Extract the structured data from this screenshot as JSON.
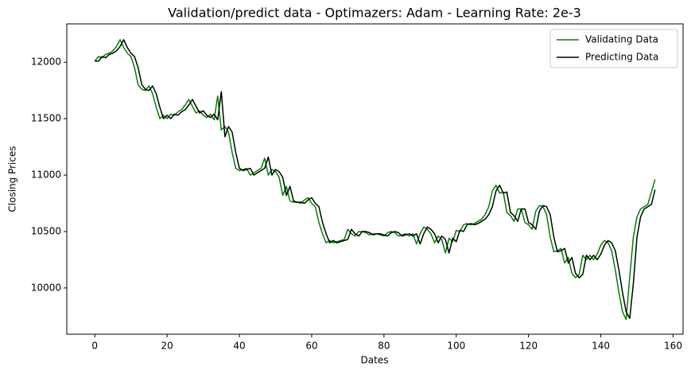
{
  "chart_data": {
    "type": "line",
    "title": "Validation/predict data - Optimazers: Adam - Learning Rate: 2e-3",
    "x_label": "Dates",
    "y_label": "Closing Prices",
    "xlim": [
      -7.75,
      162.75
    ],
    "xticks": [
      0,
      20,
      40,
      60,
      80,
      100,
      120,
      140,
      160
    ],
    "ylim": [
      9590,
      12340
    ],
    "yticks": [
      10000,
      10500,
      11000,
      11500,
      12000
    ],
    "grid": false,
    "legend": "upper right",
    "series": [
      {
        "name": "Validating Data",
        "color": "#008000",
        "values": [
          12010,
          12050,
          12040,
          12070,
          12080,
          12100,
          12140,
          12200,
          12130,
          12080,
          12050,
          11950,
          11800,
          11760,
          11750,
          11790,
          11720,
          11600,
          11500,
          11530,
          11500,
          11540,
          11530,
          11560,
          11580,
          11620,
          11670,
          11610,
          11550,
          11570,
          11530,
          11510,
          11540,
          11490,
          11700,
          11400,
          11430,
          11380,
          11200,
          11060,
          11040,
          11050,
          11060,
          11000,
          11020,
          11040,
          11060,
          11150,
          11000,
          11050,
          11030,
          10980,
          10820,
          10900,
          10770,
          10760,
          10760,
          10750,
          10780,
          10800,
          10750,
          10720,
          10580,
          10480,
          10400,
          10420,
          10400,
          10410,
          10420,
          10430,
          10520,
          10480,
          10460,
          10500,
          10500,
          10490,
          10470,
          10480,
          10480,
          10470,
          10460,
          10490,
          10500,
          10490,
          10460,
          10470,
          10480,
          10460,
          10480,
          10390,
          10480,
          10540,
          10520,
          10480,
          10400,
          10460,
          10430,
          10310,
          10440,
          10410,
          10510,
          10500,
          10560,
          10570,
          10560,
          10570,
          10590,
          10610,
          10650,
          10720,
          10860,
          10910,
          10840,
          10850,
          10670,
          10640,
          10590,
          10700,
          10700,
          10580,
          10560,
          10520,
          10680,
          10730,
          10720,
          10650,
          10450,
          10320,
          10330,
          10350,
          10220,
          10270,
          10130,
          10090,
          10120,
          10290,
          10250,
          10290,
          10250,
          10300,
          10380,
          10420,
          10400,
          10330,
          10160,
          9960,
          9790,
          9720,
          10100,
          10450,
          10630,
          10700,
          10720,
          10740,
          10850,
          10960
        ]
      },
      {
        "name": "Predicting Data",
        "color": "#000000",
        "values": [
          12010,
          12010,
          12050,
          12040,
          12070,
          12080,
          12100,
          12140,
          12200,
          12130,
          12080,
          12050,
          11950,
          11800,
          11760,
          11750,
          11790,
          11720,
          11600,
          11500,
          11530,
          11500,
          11540,
          11530,
          11560,
          11580,
          11620,
          11670,
          11610,
          11550,
          11570,
          11530,
          11510,
          11540,
          11490,
          11740,
          11340,
          11430,
          11380,
          11200,
          11060,
          11040,
          11050,
          11060,
          11000,
          11020,
          11040,
          11060,
          11160,
          11000,
          11050,
          11030,
          10980,
          10820,
          10900,
          10770,
          10760,
          10760,
          10750,
          10780,
          10800,
          10750,
          10720,
          10580,
          10480,
          10400,
          10420,
          10400,
          10410,
          10420,
          10430,
          10520,
          10480,
          10460,
          10500,
          10500,
          10490,
          10470,
          10480,
          10480,
          10470,
          10460,
          10490,
          10500,
          10490,
          10460,
          10470,
          10480,
          10460,
          10480,
          10390,
          10480,
          10540,
          10520,
          10480,
          10400,
          10460,
          10430,
          10310,
          10440,
          10410,
          10510,
          10500,
          10560,
          10570,
          10560,
          10570,
          10590,
          10610,
          10650,
          10720,
          10860,
          10910,
          10840,
          10850,
          10670,
          10640,
          10590,
          10700,
          10700,
          10580,
          10560,
          10520,
          10680,
          10730,
          10720,
          10650,
          10450,
          10320,
          10330,
          10350,
          10220,
          10270,
          10130,
          10090,
          10120,
          10290,
          10250,
          10290,
          10250,
          10300,
          10380,
          10420,
          10400,
          10330,
          10160,
          9960,
          9790,
          9730,
          10040,
          10450,
          10630,
          10700,
          10720,
          10740,
          10870
        ]
      }
    ]
  }
}
